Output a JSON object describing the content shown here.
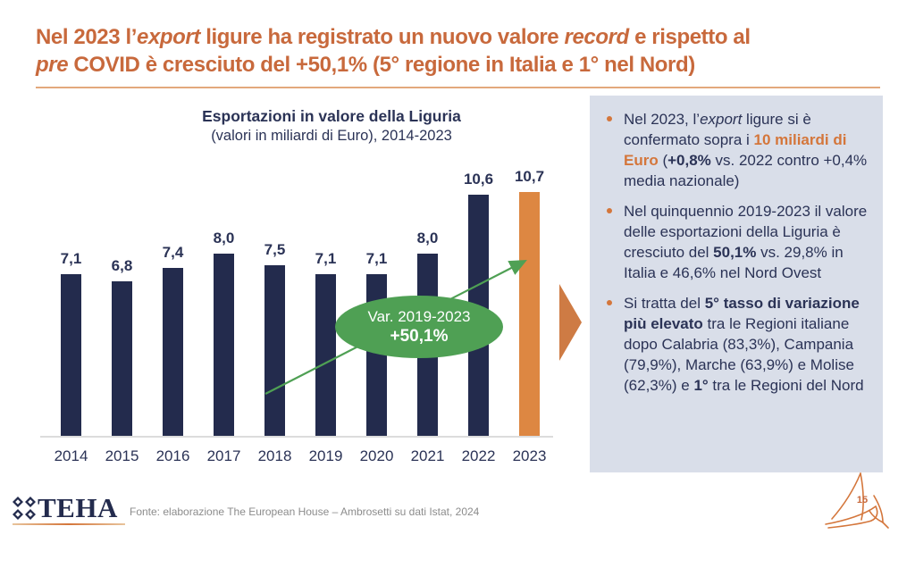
{
  "title": {
    "line1_segments": [
      {
        "text": "Nel 2023 l’"
      },
      {
        "text": "export",
        "italic": true
      },
      {
        "text": " ligure ha registrato un nuovo valore "
      },
      {
        "text": "record",
        "italic": true
      },
      {
        "text": " e rispetto al"
      }
    ],
    "line2_segments": [
      {
        "text": "pre",
        "italic": true
      },
      {
        "text": " COVID è cresciuto del +50,1% (5° regione in Italia e 1° nel Nord)"
      }
    ]
  },
  "chart_data": {
    "type": "bar",
    "title": "Esportazioni in valore della Liguria",
    "subtitle": "(valori in miliardi di Euro), 2014-2023",
    "categories": [
      "2014",
      "2015",
      "2016",
      "2017",
      "2018",
      "2019",
      "2020",
      "2021",
      "2022",
      "2023"
    ],
    "values": [
      7.1,
      6.8,
      7.4,
      8.0,
      7.5,
      7.1,
      7.1,
      8.0,
      10.6,
      10.7
    ],
    "value_labels": [
      "7,1",
      "6,8",
      "7,4",
      "8,0",
      "7,5",
      "7,1",
      "7,1",
      "8,0",
      "10,6",
      "10,7"
    ],
    "ylim": [
      0,
      12
    ],
    "grid": false,
    "bar_color": "#232b4d",
    "highlight_color": "#dd8742",
    "highlight_index": 9,
    "annotation": {
      "line1": "Var. 2019-2023",
      "line2": "+50,1%",
      "fill_color": "#4fa054",
      "arrow_color": "#4fa054"
    }
  },
  "panel": {
    "bullets": [
      {
        "segments": [
          {
            "text": "Nel 2023, l’"
          },
          {
            "text": "export",
            "italic": true
          },
          {
            "text": " ligure si è confermato sopra i "
          },
          {
            "text": "10 miliardi di Euro",
            "bold": true,
            "color": "#d4763b"
          },
          {
            "text": " ("
          },
          {
            "text": "+0,8%",
            "bold": true
          },
          {
            "text": " vs. 2022 contro +0,4% media nazionale)"
          }
        ]
      },
      {
        "segments": [
          {
            "text": "Nel quinquennio 2019-2023 il valore delle esportazioni della Liguria è cresciuto del "
          },
          {
            "text": "50,1%",
            "bold": true
          },
          {
            "text": " vs. 29,8% in Italia e 46,6% nel Nord Ovest"
          }
        ]
      },
      {
        "segments": [
          {
            "text": "Si tratta del "
          },
          {
            "text": "5° tasso di variazione più elevato",
            "bold": true
          },
          {
            "text": " tra le Regioni italiane dopo Calabria (83,3%), Campania (79,9%), Marche (63,9%) e Molise (62,3%) e "
          },
          {
            "text": "1°",
            "bold": true
          },
          {
            "text": " tra le Regioni del Nord"
          }
        ]
      }
    ]
  },
  "footer": {
    "logo_text": "TEHA",
    "source": "Fonte: elaborazione The European House – Ambrosetti su dati Istat, 2024",
    "page_number": "15"
  },
  "colors": {
    "title_orange": "#c8693c",
    "navy": "#232b4d",
    "text_navy": "#2b3356",
    "bar_highlight_orange": "#dd8742",
    "panel_background": "#d9dee9",
    "green": "#4fa054",
    "flow_arrow_orange": "#ce7b44",
    "source_gray": "#8c8c8c"
  }
}
